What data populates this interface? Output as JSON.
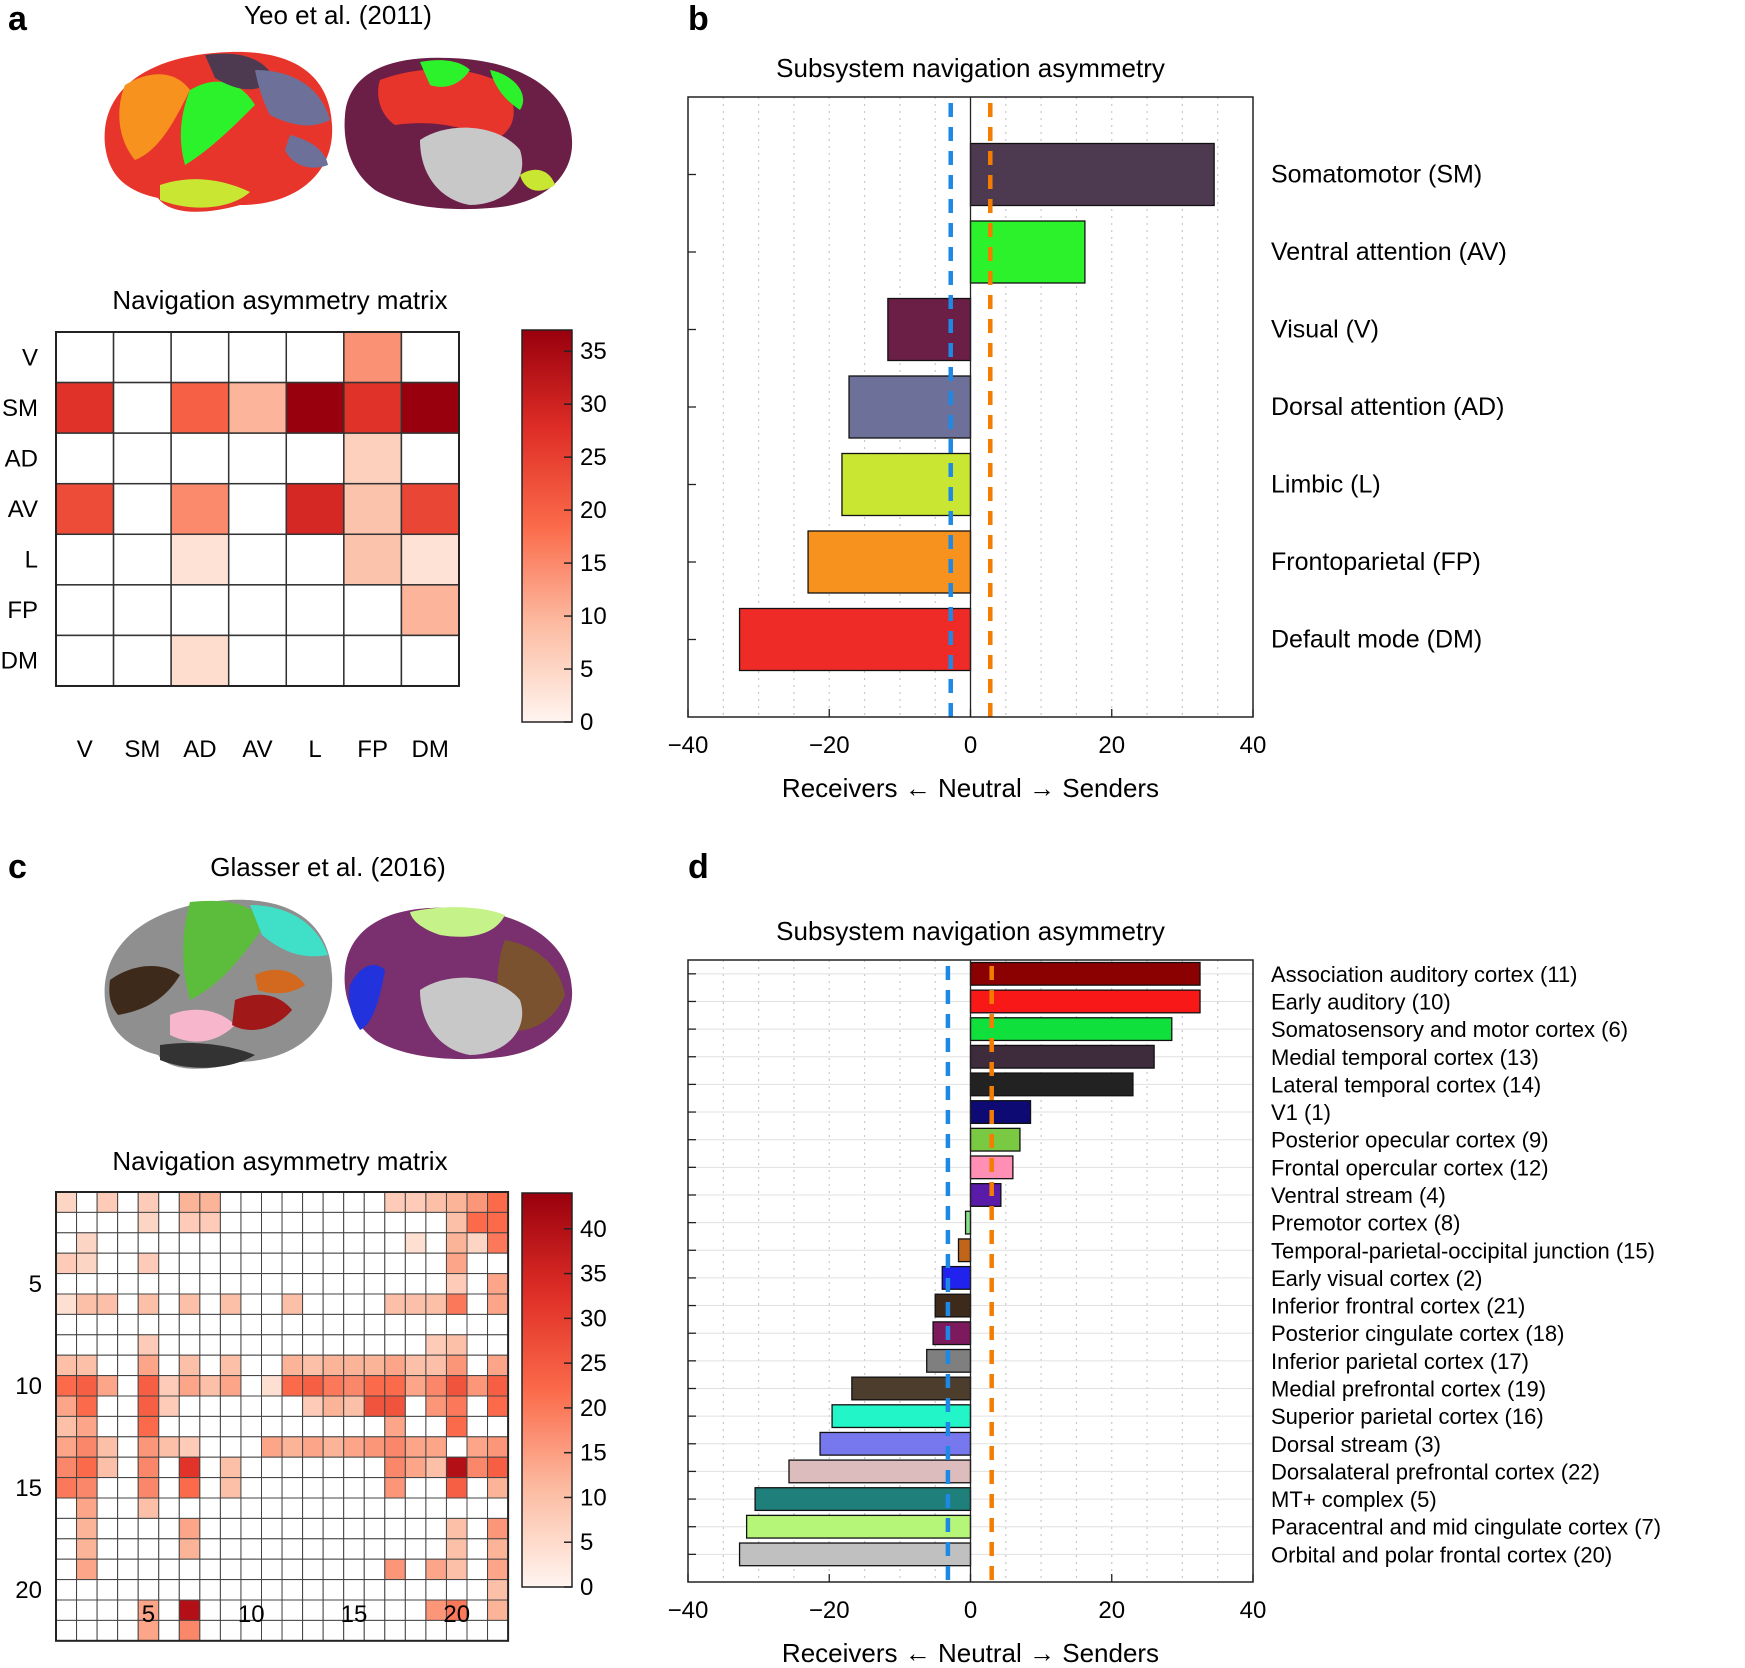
{
  "panels": {
    "a": {
      "label": "a",
      "brain_title": "Yeo et al. (2011)",
      "matrix_title": "Navigation asymmetry matrix"
    },
    "b": {
      "label": "b"
    },
    "c": {
      "label": "c",
      "brain_title": "Glasser et al. (2016)",
      "matrix_title": "Navigation asymmetry matrix"
    },
    "d": {
      "label": "d"
    }
  },
  "chart_data": [
    {
      "id": "a-matrix",
      "type": "heatmap",
      "title": "Navigation asymmetry matrix",
      "row_labels": [
        "V",
        "SM",
        "AD",
        "AV",
        "L",
        "FP",
        "DM"
      ],
      "col_labels": [
        "V",
        "SM",
        "AD",
        "AV",
        "L",
        "FP",
        "DM"
      ],
      "values": [
        [
          0,
          0,
          0,
          0,
          0,
          14,
          0
        ],
        [
          27,
          0,
          20,
          10,
          37,
          27,
          37
        ],
        [
          0,
          0,
          0,
          0,
          0,
          6,
          0
        ],
        [
          23,
          0,
          15,
          0,
          29,
          8,
          24
        ],
        [
          0,
          0,
          3,
          0,
          0,
          8,
          3
        ],
        [
          0,
          0,
          0,
          0,
          0,
          0,
          10
        ],
        [
          0,
          0,
          4,
          0,
          0,
          0,
          0
        ]
      ],
      "colorbar": {
        "min": 0,
        "max": 37,
        "ticks": [
          0,
          5,
          10,
          15,
          20,
          25,
          30,
          35
        ]
      }
    },
    {
      "id": "b-bars",
      "type": "bar",
      "orientation": "horizontal",
      "title": "Subsystem navigation asymmetry",
      "xlabel": "Receivers ← Neutral → Senders",
      "xlim": [
        -40,
        40
      ],
      "xticks": [
        -40,
        -20,
        0,
        20,
        40
      ],
      "xtick_labels": [
        "−40",
        "−20",
        "0",
        "20",
        "40"
      ],
      "reference_lines": [
        -2.8,
        2.8
      ],
      "categories": [
        "Somatomotor (SM)",
        "Ventral attention (AV)",
        "Visual (V)",
        "Dorsal attention (AD)",
        "Limbic (L)",
        "Frontoparietal (FP)",
        "Default mode (DM)"
      ],
      "values": [
        34.5,
        16.2,
        -11.7,
        -17.2,
        -18.2,
        -23,
        -32.7
      ],
      "colors": [
        "#4e3a50",
        "#2cf22c",
        "#6b1f46",
        "#6d7099",
        "#c9e632",
        "#f7921e",
        "#ee2b27"
      ]
    },
    {
      "id": "c-matrix",
      "type": "heatmap",
      "title": "Navigation asymmetry matrix",
      "rows": 22,
      "cols": 22,
      "row_ticks": [
        5,
        10,
        15,
        20
      ],
      "col_ticks": [
        5,
        10,
        15,
        20
      ],
      "values": [
        [
          6,
          0,
          8,
          0,
          8,
          0,
          12,
          12,
          0,
          0,
          0,
          0,
          0,
          0,
          0,
          0,
          8,
          8,
          10,
          12,
          16,
          22
        ],
        [
          0,
          0,
          0,
          0,
          6,
          0,
          8,
          8,
          0,
          0,
          0,
          0,
          0,
          0,
          0,
          0,
          0,
          0,
          0,
          10,
          22,
          22
        ],
        [
          0,
          6,
          0,
          0,
          0,
          0,
          0,
          0,
          0,
          0,
          0,
          0,
          0,
          0,
          0,
          0,
          0,
          4,
          0,
          12,
          6,
          20
        ],
        [
          8,
          6,
          0,
          0,
          8,
          0,
          0,
          0,
          0,
          0,
          0,
          0,
          0,
          0,
          0,
          0,
          0,
          0,
          0,
          14,
          0,
          0
        ],
        [
          0,
          0,
          0,
          0,
          0,
          0,
          0,
          0,
          0,
          0,
          0,
          0,
          0,
          0,
          0,
          0,
          0,
          0,
          0,
          8,
          0,
          14
        ],
        [
          4,
          10,
          10,
          0,
          10,
          0,
          10,
          0,
          10,
          0,
          0,
          10,
          0,
          0,
          0,
          0,
          10,
          10,
          10,
          20,
          0,
          14
        ],
        [
          0,
          0,
          0,
          0,
          0,
          0,
          0,
          0,
          0,
          0,
          0,
          0,
          0,
          0,
          0,
          0,
          0,
          0,
          0,
          0,
          0,
          0
        ],
        [
          0,
          0,
          0,
          0,
          8,
          0,
          0,
          0,
          0,
          0,
          0,
          0,
          0,
          0,
          0,
          0,
          0,
          0,
          8,
          10,
          0,
          0
        ],
        [
          10,
          10,
          0,
          0,
          14,
          0,
          10,
          0,
          10,
          0,
          0,
          12,
          10,
          12,
          12,
          12,
          14,
          10,
          10,
          16,
          0,
          14
        ],
        [
          22,
          24,
          14,
          0,
          24,
          8,
          14,
          10,
          14,
          0,
          4,
          22,
          24,
          20,
          18,
          22,
          22,
          14,
          18,
          26,
          16,
          24
        ],
        [
          14,
          22,
          0,
          0,
          24,
          8,
          0,
          0,
          0,
          0,
          0,
          0,
          8,
          12,
          10,
          26,
          26,
          0,
          16,
          20,
          0,
          22
        ],
        [
          10,
          14,
          0,
          0,
          22,
          0,
          0,
          0,
          0,
          0,
          0,
          0,
          0,
          0,
          0,
          0,
          14,
          0,
          0,
          22,
          0,
          0
        ],
        [
          14,
          18,
          10,
          0,
          16,
          10,
          8,
          0,
          0,
          0,
          14,
          12,
          14,
          12,
          14,
          16,
          18,
          14,
          14,
          0,
          14,
          16
        ],
        [
          18,
          22,
          10,
          0,
          18,
          0,
          32,
          0,
          10,
          0,
          0,
          0,
          0,
          0,
          0,
          0,
          18,
          14,
          10,
          40,
          18,
          24
        ],
        [
          20,
          18,
          0,
          0,
          18,
          0,
          22,
          0,
          10,
          0,
          0,
          0,
          0,
          0,
          0,
          0,
          16,
          0,
          0,
          24,
          0,
          12
        ],
        [
          0,
          14,
          0,
          0,
          10,
          0,
          0,
          0,
          0,
          0,
          0,
          0,
          0,
          0,
          0,
          0,
          0,
          0,
          0,
          0,
          0,
          0
        ],
        [
          0,
          12,
          0,
          0,
          0,
          0,
          14,
          0,
          0,
          0,
          0,
          0,
          0,
          0,
          0,
          0,
          0,
          0,
          0,
          10,
          0,
          16
        ],
        [
          0,
          12,
          0,
          0,
          0,
          0,
          12,
          0,
          0,
          0,
          0,
          0,
          0,
          0,
          0,
          0,
          0,
          0,
          0,
          10,
          0,
          12
        ],
        [
          0,
          14,
          0,
          0,
          0,
          0,
          0,
          0,
          0,
          0,
          0,
          0,
          0,
          0,
          0,
          0,
          16,
          0,
          14,
          10,
          0,
          14
        ],
        [
          0,
          0,
          0,
          0,
          0,
          0,
          0,
          0,
          0,
          0,
          0,
          0,
          0,
          0,
          0,
          0,
          0,
          0,
          0,
          0,
          0,
          10
        ],
        [
          0,
          0,
          0,
          0,
          14,
          0,
          40,
          0,
          0,
          0,
          0,
          0,
          0,
          0,
          0,
          0,
          0,
          0,
          16,
          20,
          0,
          12
        ],
        [
          0,
          0,
          0,
          0,
          14,
          0,
          18,
          0,
          0,
          0,
          0,
          0,
          0,
          0,
          0,
          0,
          0,
          0,
          0,
          0,
          0,
          0
        ]
      ],
      "colorbar": {
        "min": 0,
        "max": 44,
        "ticks": [
          0,
          5,
          10,
          15,
          20,
          25,
          30,
          35,
          40
        ]
      }
    },
    {
      "id": "d-bars",
      "type": "bar",
      "orientation": "horizontal",
      "title": "Subsystem navigation asymmetry",
      "xlabel": "Receivers ← Neutral → Senders",
      "xlim": [
        -40,
        40
      ],
      "xticks": [
        -40,
        -20,
        0,
        20,
        40
      ],
      "xtick_labels": [
        "−40",
        "−20",
        "0",
        "20",
        "40"
      ],
      "reference_lines": [
        -3.2,
        3.0
      ],
      "categories": [
        "Association auditory cortex (11)",
        "Early auditory (10)",
        "Somatosensory and motor cortex (6)",
        "Medial temporal cortex (13)",
        "Lateral temporal cortex (14)",
        "V1 (1)",
        "Posterior opecular cortex (9)",
        "Frontal opercular cortex (12)",
        "Ventral stream (4)",
        "Premotor cortex (8)",
        "Temporal-parietal-occipital junction (15)",
        "Early visual cortex (2)",
        "Inferior frontral cortex (21)",
        "Posterior cingulate cortex (18)",
        "Inferior parietal cortex (17)",
        "Medial prefrontal cortex (19)",
        "Superior parietal cortex (16)",
        "Dorsal stream (3)",
        "Dorsalateral prefrontal cortex (22)",
        "MT+ complex (5)",
        "Paracentral and mid cingulate cortex (7)",
        "Orbital and polar frontal cortex (20)"
      ],
      "values": [
        32.5,
        32.5,
        28.5,
        26,
        23,
        8.5,
        7,
        6,
        4.3,
        -0.7,
        -1.7,
        -4,
        -5,
        -5.3,
        -6.2,
        -16.8,
        -19.6,
        -21.3,
        -25.7,
        -30.5,
        -31.7,
        -32.7
      ],
      "colors": [
        "#8b0000",
        "#f81818",
        "#10e03c",
        "#3e2b3c",
        "#222222",
        "#0d0a73",
        "#7ac943",
        "#ff8fb5",
        "#5a1ba8",
        "#88e088",
        "#c0661a",
        "#2222ee",
        "#3d2a1a",
        "#7d1a5e",
        "#7f7f7f",
        "#4d3d2d",
        "#22f5c8",
        "#7777ee",
        "#dcbcbc",
        "#1f7f7a",
        "#b5f577",
        "#c0c0c0"
      ]
    }
  ]
}
